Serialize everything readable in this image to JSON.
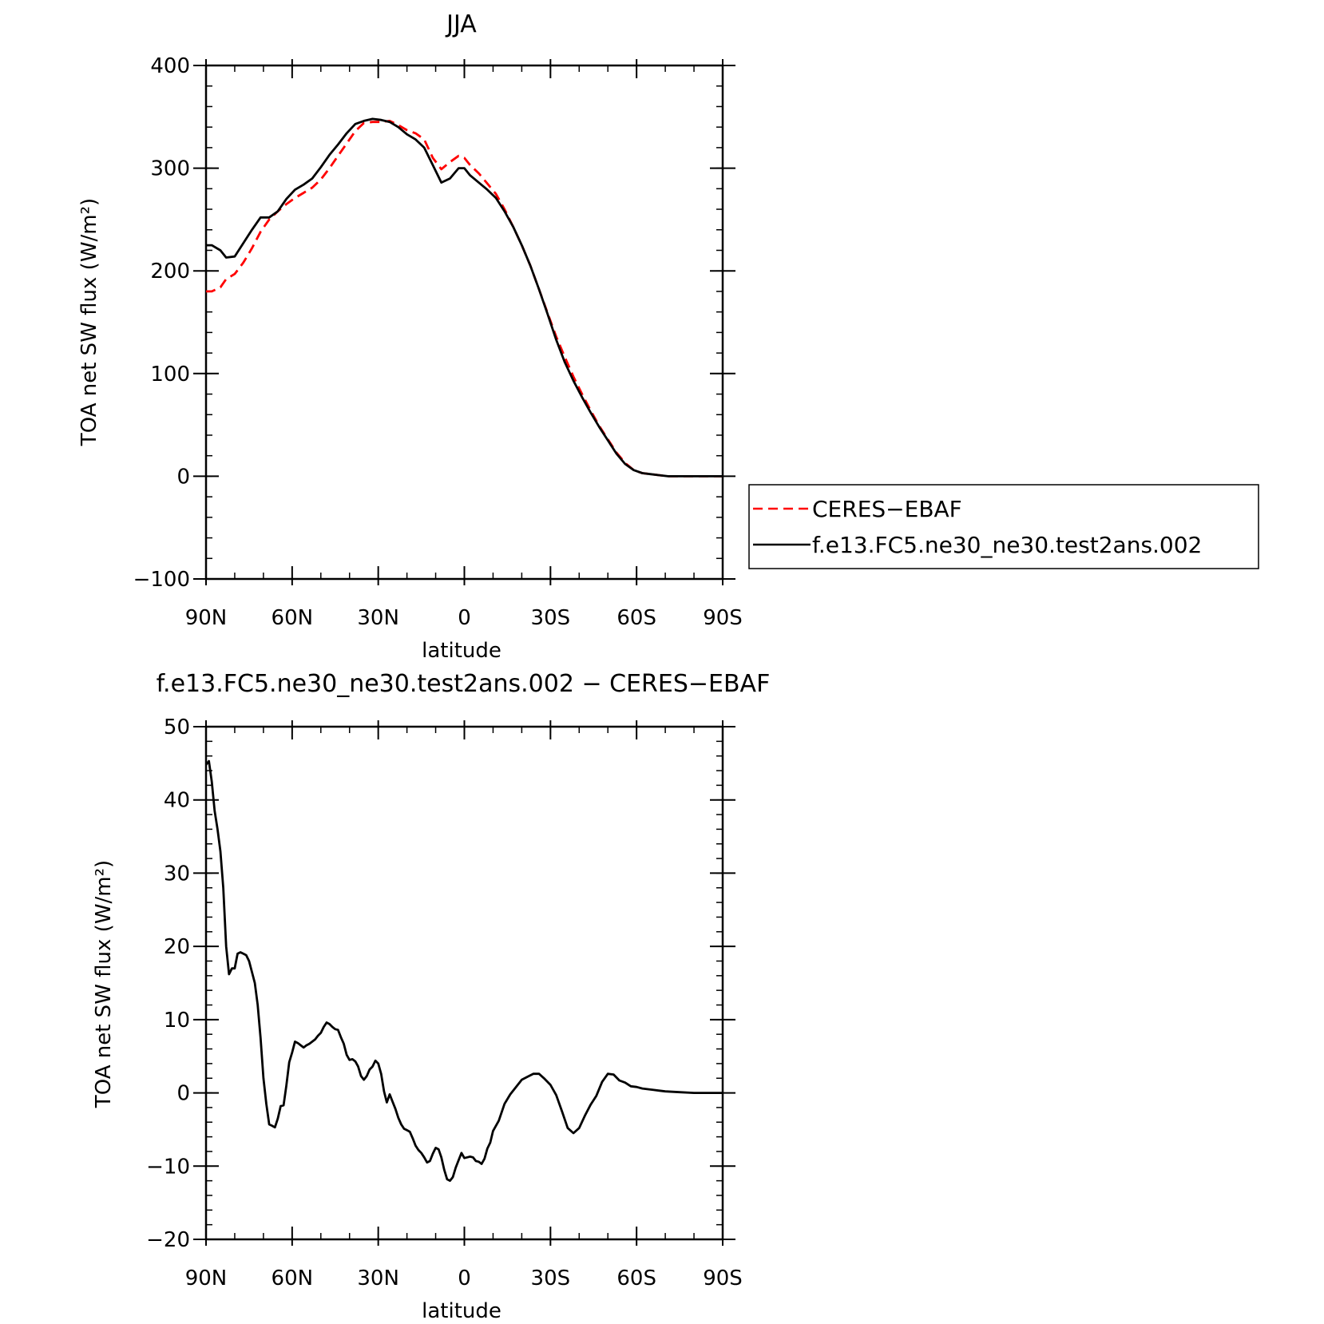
{
  "chart_data": [
    {
      "type": "line",
      "title": "JJA",
      "xlabel": "latitude",
      "ylabel": "TOA net SW flux (W/m²)",
      "xlim": [
        90,
        -90
      ],
      "ylim": [
        -100,
        400
      ],
      "xticks": [
        90,
        60,
        30,
        0,
        -30,
        -60,
        -90
      ],
      "xticklabels": [
        "90N",
        "60N",
        "30N",
        "0",
        "30S",
        "60S",
        "90S"
      ],
      "yticks": [
        -100,
        0,
        100,
        200,
        300,
        400
      ],
      "yticklabels": [
        "−100",
        "0",
        "100",
        "200",
        "300",
        "400"
      ],
      "grid": false,
      "legend_position": "right-outside",
      "series": [
        {
          "name": "CERES−EBAF",
          "color": "#ff0000",
          "dash": "dashed",
          "x": [
            90,
            88,
            85,
            83,
            80,
            77,
            74,
            71,
            68,
            65,
            62,
            59,
            56,
            53,
            50,
            47,
            44,
            41,
            38,
            35,
            32,
            29,
            26,
            23,
            20,
            17,
            14,
            11,
            8,
            5,
            2,
            0,
            -2,
            -5,
            -8,
            -11,
            -14,
            -17,
            -20,
            -23,
            -26,
            -29,
            -32,
            -35,
            -38,
            -41,
            -44,
            -47,
            -50,
            -53,
            -56,
            -59,
            -62,
            -65,
            -68,
            -71,
            -74,
            -77,
            -80,
            -83,
            -86,
            -90
          ],
          "y": [
            180,
            180,
            184,
            192,
            197,
            208,
            222,
            238,
            250,
            258,
            265,
            271,
            276,
            281,
            289,
            300,
            312,
            324,
            336,
            344,
            345,
            345,
            346,
            342,
            337,
            334,
            328,
            310,
            299,
            306,
            312,
            310,
            303,
            295,
            285,
            275,
            260,
            243,
            225,
            205,
            182,
            159,
            136,
            116,
            97,
            80,
            64,
            49,
            36,
            23,
            13,
            6,
            3,
            2,
            1,
            0,
            0,
            0,
            0,
            0,
            0,
            0
          ]
        },
        {
          "name": "f.e13.FC5.ne30_ne30.test2ans.002",
          "color": "#000000",
          "dash": "solid",
          "x": [
            90,
            88,
            85,
            83,
            80,
            77,
            74,
            71,
            68,
            65,
            62,
            59,
            56,
            53,
            50,
            47,
            44,
            41,
            38,
            35,
            32,
            29,
            26,
            23,
            20,
            17,
            14,
            11,
            8,
            5,
            2,
            0,
            -2,
            -5,
            -8,
            -11,
            -14,
            -17,
            -20,
            -23,
            -26,
            -29,
            -32,
            -35,
            -38,
            -41,
            -44,
            -47,
            -50,
            -53,
            -56,
            -59,
            -62,
            -65,
            -68,
            -71,
            -74,
            -77,
            -80,
            -83,
            -86,
            -90
          ],
          "y": [
            225,
            225,
            220,
            213,
            214,
            227,
            240,
            252,
            252,
            258,
            270,
            279,
            284,
            290,
            301,
            313,
            323,
            334,
            343,
            346,
            348,
            347,
            345,
            340,
            333,
            328,
            320,
            303,
            286,
            290,
            300,
            300,
            293,
            286,
            279,
            271,
            258,
            243,
            225,
            205,
            182,
            158,
            133,
            111,
            93,
            77,
            62,
            48,
            35,
            22,
            12,
            6,
            3,
            2,
            1,
            0,
            0,
            0,
            0,
            0,
            0,
            0
          ]
        }
      ]
    },
    {
      "type": "line",
      "title": "f.e13.FC5.ne30_ne30.test2ans.002 − CERES−EBAF",
      "xlabel": "latitude",
      "ylabel": "TOA net SW flux (W/m²)",
      "xlim": [
        90,
        -90
      ],
      "ylim": [
        -20,
        50
      ],
      "xticks": [
        90,
        60,
        30,
        0,
        -30,
        -60,
        -90
      ],
      "xticklabels": [
        "90N",
        "60N",
        "30N",
        "0",
        "30S",
        "60S",
        "90S"
      ],
      "yticks": [
        -20,
        -10,
        0,
        10,
        20,
        30,
        40,
        50
      ],
      "yticklabels": [
        "−20",
        "−10",
        "0",
        "10",
        "20",
        "30",
        "40",
        "50"
      ],
      "grid": false,
      "series": [
        {
          "color": "#000000",
          "dash": "solid",
          "x": [
            90,
            89,
            88,
            87,
            86,
            85,
            84,
            83,
            82,
            81,
            80,
            79,
            78,
            77,
            76,
            75,
            74,
            73,
            72,
            71,
            70,
            69,
            68,
            67,
            66,
            65,
            64,
            63,
            62,
            61,
            60,
            59,
            58,
            57,
            56,
            55,
            54,
            53,
            52,
            51,
            50,
            49,
            48,
            47,
            46,
            45,
            44,
            43,
            42,
            41,
            40,
            39,
            38,
            37,
            36,
            35,
            34,
            33,
            32,
            31,
            30,
            29,
            28,
            27,
            26,
            25,
            24,
            23,
            22,
            21,
            20,
            19,
            18,
            17,
            16,
            15,
            14,
            13,
            12,
            11,
            10,
            9,
            8,
            7,
            6,
            5,
            4,
            3,
            2,
            1,
            0,
            -1,
            -2,
            -3,
            -4,
            -5,
            -6,
            -7,
            -8,
            -9,
            -10,
            -12,
            -14,
            -16,
            -18,
            -20,
            -22,
            -24,
            -26,
            -28,
            -30,
            -32,
            -34,
            -36,
            -38,
            -40,
            -42,
            -44,
            -46,
            -48,
            -50,
            -52,
            -54,
            -56,
            -58,
            -60,
            -62,
            -64,
            -66,
            -68,
            -70,
            -75,
            -80,
            -85,
            -90
          ],
          "y": [
            44.8,
            45.3,
            42.5,
            38.5,
            36,
            33,
            28,
            20,
            16.2,
            17,
            17,
            19,
            19.2,
            19,
            18.8,
            18,
            16.5,
            15,
            12,
            7.5,
            2,
            -1.5,
            -4.3,
            -4.5,
            -4.7,
            -3.5,
            -1.8,
            -1.7,
            1,
            4.2,
            5.5,
            7,
            6.8,
            6.5,
            6.2,
            6.5,
            6.7,
            7,
            7.3,
            7.8,
            8.2,
            9,
            9.6,
            9.4,
            9,
            8.7,
            8.6,
            7.6,
            6.7,
            5.2,
            4.5,
            4.6,
            4.3,
            3.6,
            2.3,
            1.8,
            2.3,
            3.2,
            3.6,
            4.4,
            4,
            2.6,
            0.2,
            -1.3,
            -0.2,
            -1.2,
            -2.2,
            -3.4,
            -4.3,
            -4.9,
            -5.1,
            -5.3,
            -6.2,
            -7.2,
            -7.8,
            -8.2,
            -8.8,
            -9.5,
            -9.3,
            -8.3,
            -7.5,
            -7.7,
            -8.8,
            -10.5,
            -11.8,
            -12,
            -11.5,
            -10.2,
            -9.2,
            -8.2,
            -8.9,
            -8.8,
            -8.7,
            -8.8,
            -9.3,
            -9.4,
            -9.7,
            -9,
            -7.6,
            -6.8,
            -5.2,
            -3.8,
            -1.5,
            -0.2,
            0.8,
            1.8,
            2.2,
            2.6,
            2.6,
            1.9,
            1.1,
            -0.3,
            -2.5,
            -4.8,
            -5.5,
            -4.8,
            -3.1,
            -1.6,
            -0.4,
            1.5,
            2.6,
            2.5,
            1.7,
            1.4,
            0.9,
            0.8,
            0.6,
            0.5,
            0.4,
            0.3,
            0.2,
            0.1,
            0,
            0,
            0
          ]
        }
      ]
    }
  ]
}
